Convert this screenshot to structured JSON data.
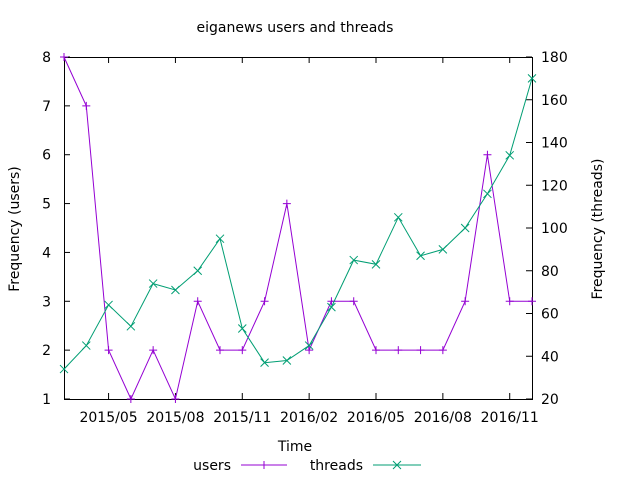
{
  "chart_data": {
    "type": "line",
    "title": "eiganews users and threads",
    "xlabel": "Time",
    "ylabel_left": "Frequency (users)",
    "ylabel_right": "Frequency (threads)",
    "x": [
      "2015-03",
      "2015-04",
      "2015-05",
      "2015-06",
      "2015-07",
      "2015-08",
      "2015-09",
      "2015-10",
      "2015-11",
      "2015-12",
      "2016-01",
      "2016-02",
      "2016-03",
      "2016-04",
      "2016-05",
      "2016-06",
      "2016-07",
      "2016-08",
      "2016-09",
      "2016-10",
      "2016-11",
      "2016-12"
    ],
    "x_ticks": [
      "2015/05",
      "2015/08",
      "2015/11",
      "2016/02",
      "2016/05",
      "2016/08",
      "2016/11"
    ],
    "ylim_left": [
      1,
      8
    ],
    "yticks_left": [
      "1",
      "2",
      "3",
      "4",
      "5",
      "6",
      "7",
      "8"
    ],
    "ylim_right": [
      20,
      180
    ],
    "yticks_right": [
      "20",
      "40",
      "60",
      "80",
      "100",
      "120",
      "140",
      "160",
      "180"
    ],
    "grid": false,
    "legend_position": "bottom",
    "series": [
      {
        "name": "users",
        "axis": "left",
        "color": "#9400d3",
        "marker": "plus",
        "values": [
          8,
          7,
          2,
          1,
          2,
          1,
          3,
          2,
          2,
          3,
          5,
          2,
          3,
          3,
          2,
          2,
          2,
          2,
          3,
          6,
          3,
          3
        ]
      },
      {
        "name": "threads",
        "axis": "right",
        "color": "#009e73",
        "marker": "cross",
        "values": [
          34,
          45,
          64,
          54,
          74,
          71,
          80,
          95,
          53,
          37,
          38,
          45,
          63,
          85,
          83,
          105,
          87,
          90,
          100,
          116,
          134,
          170
        ]
      }
    ]
  }
}
